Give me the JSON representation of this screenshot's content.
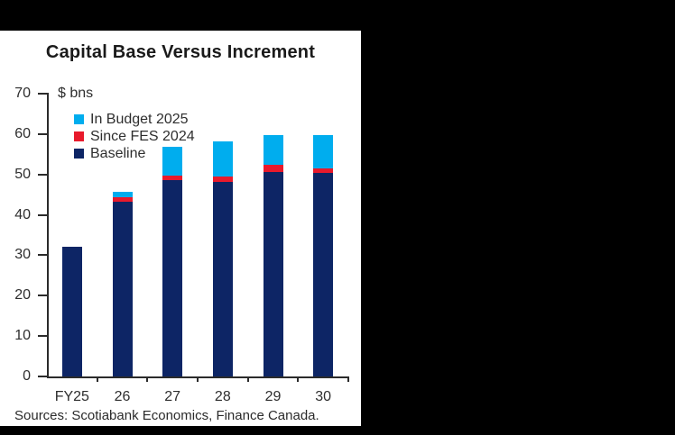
{
  "window": {
    "background_color": "#000000",
    "panel_color": "#ffffff"
  },
  "chart_data": {
    "type": "bar",
    "subtype": "stacked-vertical",
    "title": "Capital Base Versus Increment",
    "ylabel": "$ bns",
    "xlabel": "",
    "categories": [
      "FY25",
      "26",
      "27",
      "28",
      "29",
      "30"
    ],
    "series": [
      {
        "name": "Baseline",
        "color": "#0d2565",
        "values": [
          32.2,
          43.2,
          48.6,
          48.2,
          50.7,
          50.3
        ]
      },
      {
        "name": "Since FES 2024",
        "color": "#e81a2c",
        "values": [
          0,
          1.2,
          1.1,
          1.4,
          1.6,
          1.2
        ]
      },
      {
        "name": "In Budget 2025",
        "color": "#00adee",
        "values": [
          0,
          1.3,
          7.1,
          8.6,
          7.5,
          8.3
        ]
      }
    ],
    "stack_totals": [
      32.2,
      45.7,
      56.8,
      58.2,
      59.8,
      59.8
    ],
    "ylim": [
      0,
      70
    ],
    "yticks": [
      0,
      10,
      20,
      30,
      40,
      50,
      60,
      70
    ],
    "grid": false,
    "legend_position": "top-left-inside",
    "legend_order": [
      "In Budget 2025",
      "Since FES 2024",
      "Baseline"
    ],
    "axis_color": "#2b2b2b",
    "text_color": "#2e2e2e"
  },
  "footer": {
    "sources": "Sources: Scotiabank Economics, Finance Canada."
  }
}
